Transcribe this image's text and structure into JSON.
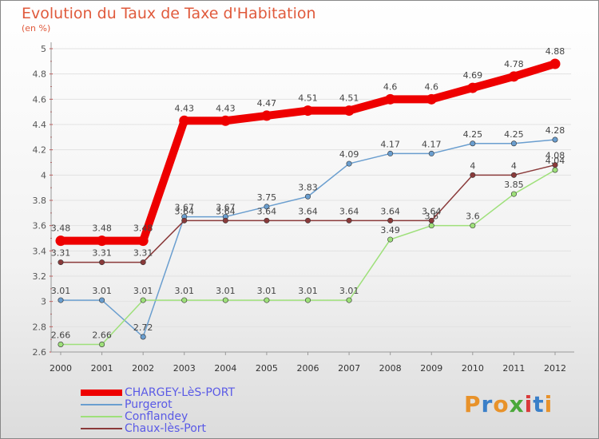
{
  "header": {
    "title": "Evolution du Taux de Taxe d'Habitation",
    "unit": "(en %)"
  },
  "logo": {
    "text": "Proxiti",
    "colors": [
      "#e8922a",
      "#3a7fc8",
      "#e8922a",
      "#4aa83a",
      "#d93a3a",
      "#3a7fc8",
      "#e8922a"
    ]
  },
  "chart_data": {
    "type": "line",
    "x": [
      "2000",
      "2001",
      "2002",
      "2003",
      "2004",
      "2005",
      "2006",
      "2007",
      "2008",
      "2009",
      "2010",
      "2011",
      "2012"
    ],
    "ylim": [
      2.6,
      5.0
    ],
    "yticks": [
      "2.6",
      "2.8",
      "3",
      "3.2",
      "3.4",
      "3.6",
      "3.8",
      "4",
      "4.2",
      "4.4",
      "4.6",
      "4.8",
      "5"
    ],
    "ylabel": "(en %)",
    "grid": true,
    "legend": "bottom-left",
    "series": [
      {
        "name": "CHARGEY-LèS-PORT",
        "color": "#ee0000",
        "values": [
          3.48,
          3.48,
          3.48,
          4.43,
          4.43,
          4.47,
          4.51,
          4.51,
          4.6,
          4.6,
          4.69,
          4.78,
          4.88
        ],
        "labels": [
          "3.48",
          "3.48",
          "3.48",
          "4.43",
          "4.43",
          "4.47",
          "4.51",
          "4.51",
          "4.6",
          "4.6",
          "4.69",
          "4.78",
          "4.88"
        ]
      },
      {
        "name": "Purgerot",
        "color": "#6a9ecf",
        "values": [
          3.01,
          3.01,
          2.72,
          3.67,
          3.67,
          3.75,
          3.83,
          4.09,
          4.17,
          4.17,
          4.25,
          4.25,
          4.28
        ],
        "labels": [
          "3.01",
          "3.01",
          "2.72",
          "3.67",
          "3.67",
          "3.75",
          "3.83",
          "4.09",
          "4.17",
          "4.17",
          "4.25",
          "4.25",
          "4.28"
        ]
      },
      {
        "name": "Conflandey",
        "color": "#9ee07a",
        "values": [
          2.66,
          2.66,
          3.01,
          3.01,
          3.01,
          3.01,
          3.01,
          3.01,
          3.49,
          3.6,
          3.6,
          3.85,
          4.04
        ],
        "labels": [
          "2.66",
          "2.66",
          "3.01",
          "3.01",
          "3.01",
          "3.01",
          "3.01",
          "3.01",
          "3.49",
          "3.6",
          "3.6",
          "3.85",
          "4.04"
        ]
      },
      {
        "name": "Chaux-lès-Port",
        "color": "#8a3a3a",
        "values": [
          3.31,
          3.31,
          3.31,
          3.64,
          3.64,
          3.64,
          3.64,
          3.64,
          3.64,
          3.64,
          4.0,
          4.0,
          4.08
        ],
        "labels": [
          "3.31",
          "3.31",
          "3.31",
          "3.64",
          "3.64",
          "3.64",
          "3.64",
          "3.64",
          "3.64",
          "3.64",
          "4",
          "4",
          "4.08"
        ]
      }
    ]
  }
}
